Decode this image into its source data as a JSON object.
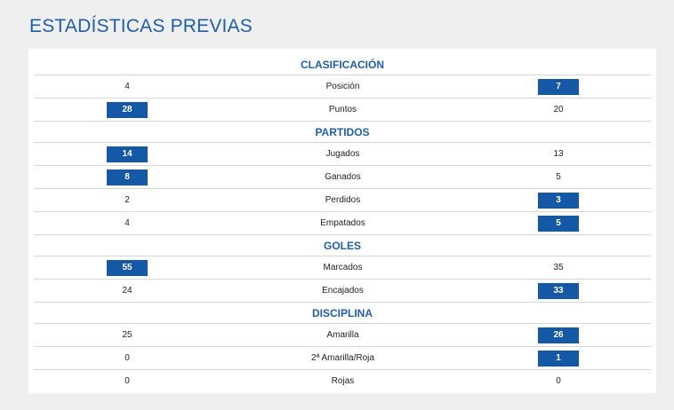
{
  "title": "ESTADÍSTICAS PREVIAS",
  "colors": {
    "accent": "#1f5fa8",
    "highlight": "#1559a6"
  },
  "sections": [
    {
      "title": "CLASIFICACIÓN",
      "rows": [
        {
          "label": "Posición",
          "left": "4",
          "right": "7",
          "highlight": "right"
        },
        {
          "label": "Puntos",
          "left": "28",
          "right": "20",
          "highlight": "left"
        }
      ]
    },
    {
      "title": "PARTIDOS",
      "rows": [
        {
          "label": "Jugados",
          "left": "14",
          "right": "13",
          "highlight": "left"
        },
        {
          "label": "Ganados",
          "left": "8",
          "right": "5",
          "highlight": "left"
        },
        {
          "label": "Perdidos",
          "left": "2",
          "right": "3",
          "highlight": "right"
        },
        {
          "label": "Empatados",
          "left": "4",
          "right": "5",
          "highlight": "right"
        }
      ]
    },
    {
      "title": "GOLES",
      "rows": [
        {
          "label": "Marcados",
          "left": "55",
          "right": "35",
          "highlight": "left"
        },
        {
          "label": "Encajados",
          "left": "24",
          "right": "33",
          "highlight": "right"
        }
      ]
    },
    {
      "title": "DISCIPLINA",
      "rows": [
        {
          "label": "Amarilla",
          "left": "25",
          "right": "26",
          "highlight": "right"
        },
        {
          "label": "2ª Amarilla/Roja",
          "left": "0",
          "right": "1",
          "highlight": "right"
        },
        {
          "label": "Rojas",
          "left": "0",
          "right": "0",
          "highlight": "none"
        }
      ]
    }
  ]
}
